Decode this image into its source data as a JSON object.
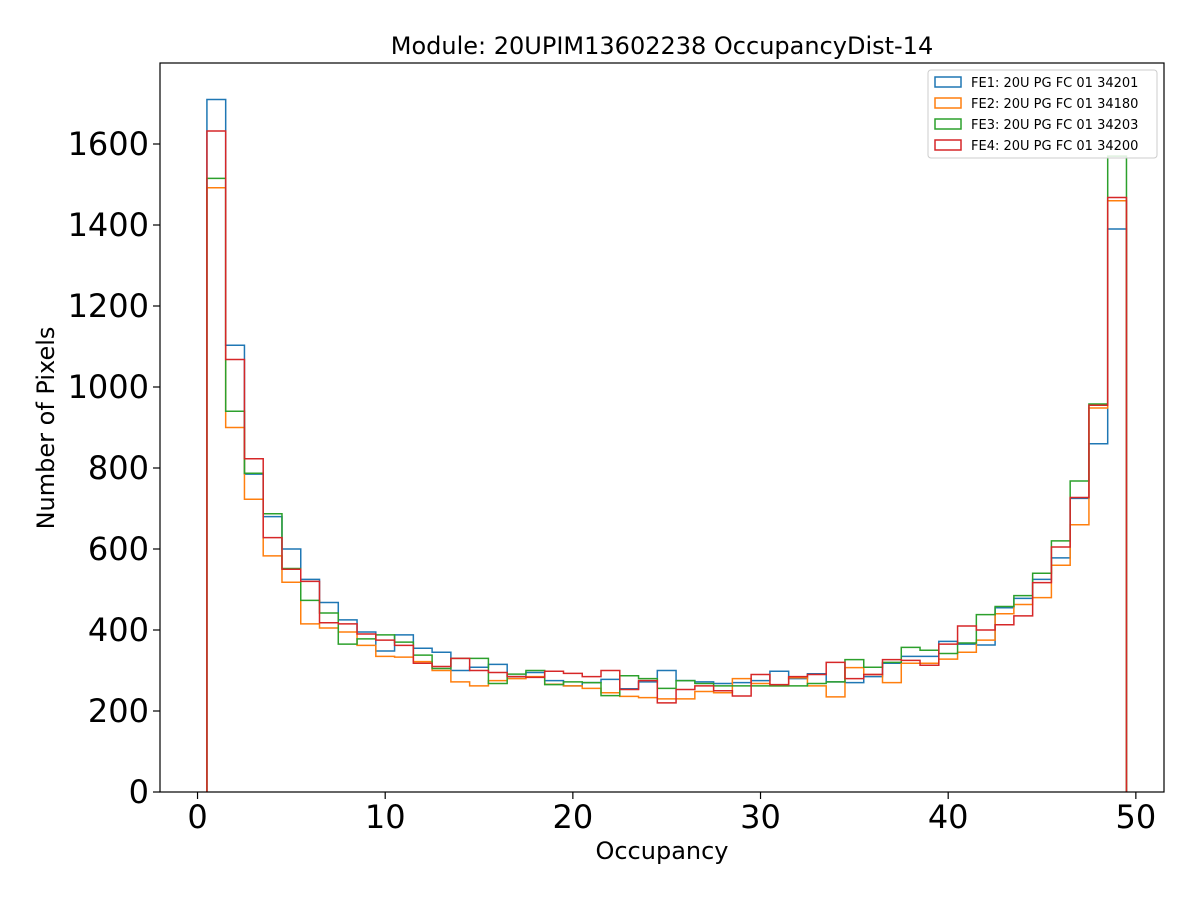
{
  "chart_data": {
    "type": "histogram-step",
    "title": "Module: 20UPIM13602238 OccupancyDist-14",
    "xlabel": "Occupancy",
    "ylabel": "Number of Pixels",
    "xlim": [
      -2,
      51.5
    ],
    "ylim": [
      0,
      1800
    ],
    "xticks": [
      0,
      10,
      20,
      30,
      40,
      50
    ],
    "yticks": [
      0,
      200,
      400,
      600,
      800,
      1000,
      1200,
      1400,
      1600
    ],
    "bin_edges_start": 0.5,
    "bin_width": 1,
    "grid": false,
    "legend_position": "top-right",
    "series": [
      {
        "name": "FE1: 20U PG FC 01 34201",
        "color": "#1f77b4",
        "values": [
          1710,
          1103,
          785,
          680,
          600,
          525,
          468,
          425,
          395,
          348,
          388,
          355,
          345,
          300,
          308,
          315,
          285,
          295,
          275,
          262,
          270,
          278,
          255,
          272,
          300,
          275,
          272,
          268,
          270,
          275,
          298,
          280,
          292,
          272,
          270,
          285,
          318,
          335,
          335,
          372,
          365,
          363,
          455,
          478,
          525,
          578,
          725,
          860,
          1390
        ]
      },
      {
        "name": "FE2: 20U PG FC 01 34180",
        "color": "#ff7f0e",
        "values": [
          1492,
          900,
          723,
          583,
          518,
          415,
          405,
          395,
          362,
          335,
          333,
          322,
          300,
          272,
          262,
          275,
          280,
          285,
          266,
          262,
          256,
          245,
          236,
          233,
          230,
          230,
          248,
          245,
          280,
          268,
          262,
          282,
          262,
          235,
          307,
          290,
          270,
          318,
          318,
          328,
          345,
          375,
          440,
          463,
          480,
          560,
          660,
          948,
          1460
        ]
      },
      {
        "name": "FE3: 20U PG FC 01 34203",
        "color": "#2ca02c",
        "values": [
          1515,
          940,
          787,
          687,
          552,
          473,
          442,
          365,
          378,
          388,
          370,
          338,
          305,
          330,
          330,
          268,
          291,
          300,
          265,
          272,
          270,
          238,
          287,
          280,
          256,
          275,
          268,
          262,
          262,
          262,
          262,
          262,
          268,
          272,
          327,
          308,
          320,
          357,
          350,
          342,
          368,
          438,
          458,
          485,
          540,
          620,
          768,
          958,
          1570
        ]
      },
      {
        "name": "FE4: 20U PG FC 01 34200",
        "color": "#d62728",
        "values": [
          1632,
          1068,
          823,
          628,
          550,
          520,
          418,
          415,
          390,
          375,
          362,
          318,
          310,
          330,
          300,
          295,
          285,
          283,
          298,
          293,
          285,
          300,
          253,
          275,
          220,
          253,
          262,
          250,
          237,
          290,
          265,
          285,
          290,
          320,
          280,
          290,
          327,
          325,
          313,
          365,
          410,
          400,
          413,
          435,
          517,
          605,
          727,
          955,
          1468
        ]
      }
    ]
  }
}
